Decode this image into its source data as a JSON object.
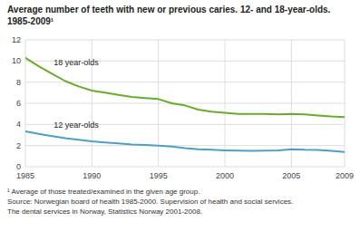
{
  "chart_data": {
    "type": "line",
    "title": "Average number of teeth with new or previous caries. 12- and 18-year-olds. 1985-2009¹",
    "annotations": [
      "¹ Average of those treated/examined in the given age group.",
      "Source: Norwegian board of health 1985-2000. Supervision of health and social services.",
      "The dental services in Norway, Statistics Norway 2001-2008."
    ],
    "x": [
      1985,
      1986,
      1987,
      1988,
      1989,
      1990,
      1991,
      1992,
      1993,
      1994,
      1995,
      1996,
      1997,
      1998,
      1999,
      2000,
      2001,
      2002,
      2003,
      2004,
      2005,
      2006,
      2007,
      2008,
      2009
    ],
    "series": [
      {
        "name": "18 year-olds",
        "color": "#6aaa2e",
        "values": [
          10.3,
          9.5,
          8.8,
          8.1,
          7.6,
          7.2,
          7.0,
          6.8,
          6.6,
          6.5,
          6.4,
          6.0,
          5.8,
          5.4,
          5.2,
          5.1,
          5.0,
          5.0,
          5.0,
          4.95,
          5.0,
          4.95,
          4.85,
          4.75,
          4.7
        ]
      },
      {
        "name": "12 year-olds",
        "color": "#4f9ec4",
        "values": [
          3.35,
          3.1,
          2.9,
          2.7,
          2.55,
          2.4,
          2.3,
          2.2,
          2.1,
          2.05,
          2.0,
          1.9,
          1.75,
          1.65,
          1.6,
          1.55,
          1.52,
          1.5,
          1.52,
          1.55,
          1.65,
          1.6,
          1.58,
          1.5,
          1.4
        ]
      }
    ],
    "xlim": [
      1985,
      2009
    ],
    "xticks": [
      1985,
      1990,
      1995,
      2000,
      2005,
      2009
    ],
    "ylim": [
      0,
      12
    ],
    "yticks": [
      0,
      2,
      4,
      6,
      8,
      10,
      12
    ],
    "grid": true
  }
}
